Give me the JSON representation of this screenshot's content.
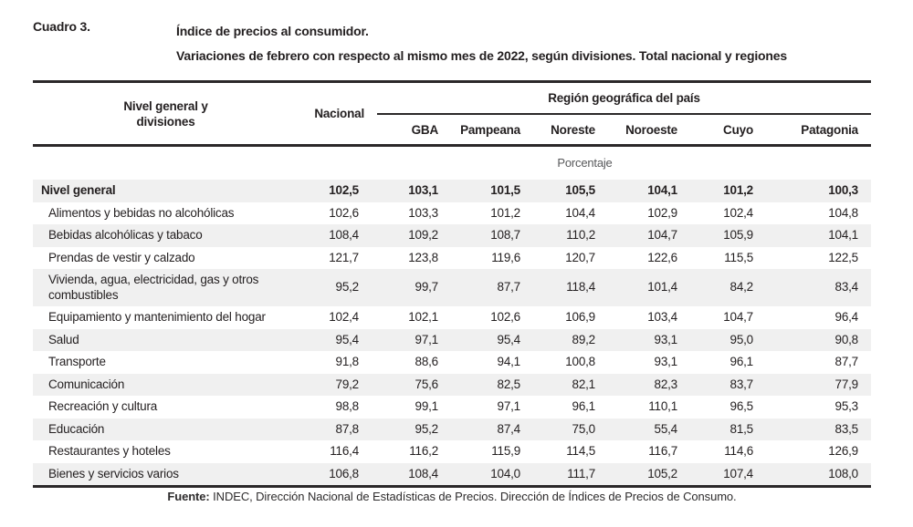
{
  "title": {
    "label": "Cuadro 3.",
    "line1": "Índice de precios al consumidor.",
    "line2": "Variaciones de febrero con respecto al mismo mes de 2022, según divisiones. Total nacional y regiones"
  },
  "table": {
    "header": {
      "col_divisions": "Nivel general y divisiones",
      "col_national": "Nacional",
      "region_group": "Región geográfica del país",
      "regions": [
        "GBA",
        "Pampeana",
        "Noreste",
        "Noroeste",
        "Cuyo",
        "Patagonia"
      ]
    },
    "unit_label": "Porcentaje",
    "rows": [
      {
        "label": "Nivel general",
        "bold": true,
        "values": [
          "102,5",
          "103,1",
          "101,5",
          "105,5",
          "104,1",
          "101,2",
          "100,3"
        ]
      },
      {
        "label": "Alimentos y bebidas no alcohólicas",
        "bold": false,
        "values": [
          "102,6",
          "103,3",
          "101,2",
          "104,4",
          "102,9",
          "102,4",
          "104,8"
        ]
      },
      {
        "label": "Bebidas alcohólicas y tabaco",
        "bold": false,
        "values": [
          "108,4",
          "109,2",
          "108,7",
          "110,2",
          "104,7",
          "105,9",
          "104,1"
        ]
      },
      {
        "label": "Prendas de vestir y calzado",
        "bold": false,
        "values": [
          "121,7",
          "123,8",
          "119,6",
          "120,7",
          "122,6",
          "115,5",
          "122,5"
        ]
      },
      {
        "label": "Vivienda, agua, electricidad, gas y otros combustibles",
        "bold": false,
        "values": [
          "95,2",
          "99,7",
          "87,7",
          "118,4",
          "101,4",
          "84,2",
          "83,4"
        ]
      },
      {
        "label": "Equipamiento y mantenimiento del hogar",
        "bold": false,
        "values": [
          "102,4",
          "102,1",
          "102,6",
          "106,9",
          "103,4",
          "104,7",
          "96,4"
        ]
      },
      {
        "label": "Salud",
        "bold": false,
        "values": [
          "95,4",
          "97,1",
          "95,4",
          "89,2",
          "93,1",
          "95,0",
          "90,8"
        ]
      },
      {
        "label": "Transporte",
        "bold": false,
        "values": [
          "91,8",
          "88,6",
          "94,1",
          "100,8",
          "93,1",
          "96,1",
          "87,7"
        ]
      },
      {
        "label": "Comunicación",
        "bold": false,
        "values": [
          "79,2",
          "75,6",
          "82,5",
          "82,1",
          "82,3",
          "83,7",
          "77,9"
        ]
      },
      {
        "label": "Recreación y cultura",
        "bold": false,
        "values": [
          "98,8",
          "99,1",
          "97,1",
          "96,1",
          "110,1",
          "96,5",
          "95,3"
        ]
      },
      {
        "label": "Educación",
        "bold": false,
        "values": [
          "87,8",
          "95,2",
          "87,4",
          "75,0",
          "55,4",
          "81,5",
          "83,5"
        ]
      },
      {
        "label": "Restaurantes y hoteles",
        "bold": false,
        "values": [
          "116,4",
          "116,2",
          "115,9",
          "114,5",
          "116,7",
          "114,6",
          "126,9"
        ]
      },
      {
        "label": "Bienes y servicios varios",
        "bold": false,
        "values": [
          "106,8",
          "108,4",
          "104,0",
          "111,7",
          "105,2",
          "107,4",
          "108,0"
        ]
      }
    ],
    "source": {
      "label": "Fuente:",
      "text": "INDEC, Dirección Nacional de Estadísticas de Precios. Dirección de Índices de Precios de Consumo."
    }
  },
  "colors": {
    "text": "#231f20",
    "rule": "#2b2829",
    "stripe": "#f0f0f0",
    "unit_text": "#58595b"
  }
}
